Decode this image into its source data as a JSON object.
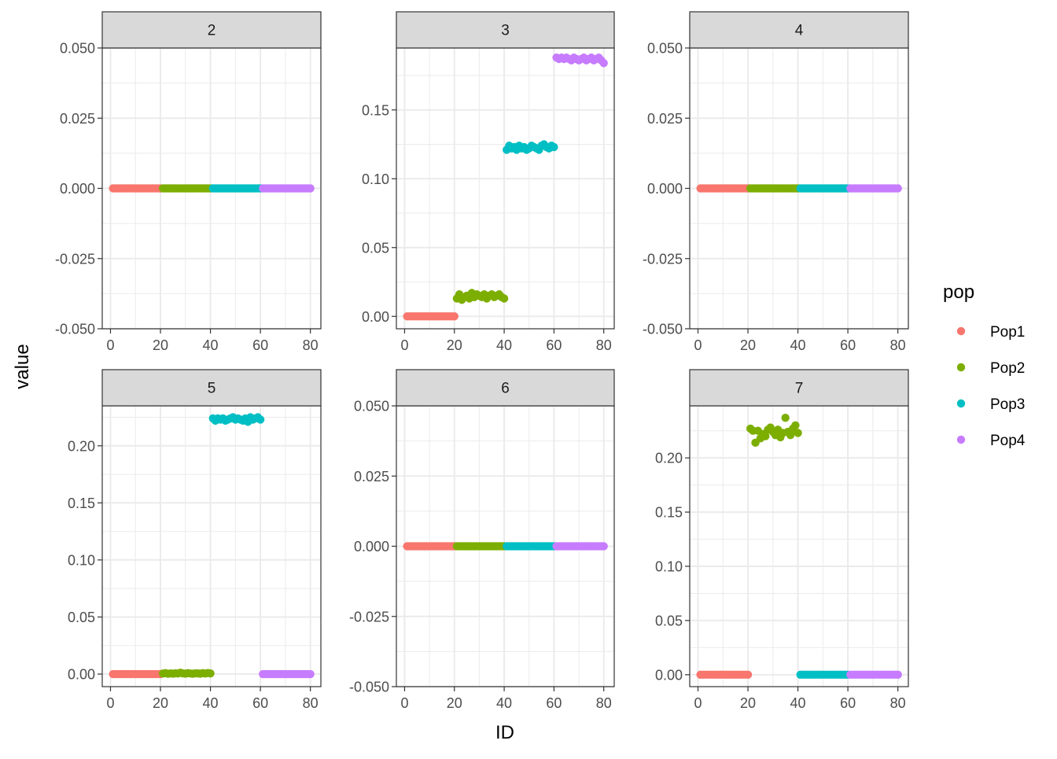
{
  "chart_data": {
    "type": "scatter",
    "title": "",
    "xlabel": "ID",
    "ylabel": "value",
    "legend": {
      "title": "pop",
      "position": "right",
      "entries": [
        {
          "name": "Pop1",
          "color": "#F8766D"
        },
        {
          "name": "Pop2",
          "color": "#7CAE00"
        },
        {
          "name": "Pop3",
          "color": "#00BFC4"
        },
        {
          "name": "Pop4",
          "color": "#C77CFF"
        }
      ]
    },
    "x_range": [
      0,
      80
    ],
    "x_ticks": [
      0,
      20,
      40,
      60,
      80
    ],
    "x_tick_labels": [
      "0",
      "20",
      "40",
      "60",
      "80"
    ],
    "groups": {
      "Pop1": [
        1,
        20
      ],
      "Pop2": [
        21,
        40
      ],
      "Pop3": [
        41,
        60
      ],
      "Pop4": [
        61,
        80
      ]
    },
    "panels": [
      {
        "label": "2",
        "ylim": [
          -0.05,
          0.05
        ],
        "y_ticks": [
          -0.05,
          -0.025,
          0,
          0.025,
          0.05
        ],
        "y_tick_labels": [
          "-0.050",
          "-0.025",
          "0.000",
          "0.025",
          "0.050"
        ],
        "values": [
          0,
          0,
          0,
          0,
          0,
          0,
          0,
          0,
          0,
          0,
          0,
          0,
          0,
          0,
          0,
          0,
          0,
          0,
          0,
          0,
          0,
          0,
          0,
          0,
          0,
          0,
          0,
          0,
          0,
          0,
          0,
          0,
          0,
          0,
          0,
          0,
          0,
          0,
          0,
          0,
          0,
          0,
          0,
          0,
          0,
          0,
          0,
          0,
          0,
          0,
          0,
          0,
          0,
          0,
          0,
          0,
          0,
          0,
          0,
          0,
          0,
          0,
          0,
          0,
          0,
          0,
          0,
          0,
          0,
          0,
          0,
          0,
          0,
          0,
          0,
          0,
          0,
          0,
          0,
          0
        ]
      },
      {
        "label": "3",
        "ylim": [
          -0.009,
          0.195
        ],
        "y_ticks": [
          0,
          0.05,
          0.1,
          0.15
        ],
        "y_tick_labels": [
          "0.00",
          "0.05",
          "0.10",
          "0.15"
        ],
        "values": [
          0,
          0,
          0,
          0,
          0,
          0,
          0,
          0,
          0,
          0,
          0,
          0,
          0,
          0,
          0,
          0,
          0,
          0,
          0,
          0,
          0.013,
          0.016,
          0.012,
          0.014,
          0.015,
          0.013,
          0.017,
          0.014,
          0.016,
          0.015,
          0.014,
          0.016,
          0.013,
          0.015,
          0.016,
          0.014,
          0.015,
          0.016,
          0.014,
          0.013,
          0.121,
          0.124,
          0.122,
          0.123,
          0.121,
          0.124,
          0.122,
          0.123,
          0.121,
          0.122,
          0.124,
          0.123,
          0.122,
          0.121,
          0.124,
          0.125,
          0.123,
          0.122,
          0.124,
          0.123,
          0.188,
          0.187,
          0.188,
          0.187,
          0.188,
          0.187,
          0.186,
          0.188,
          0.187,
          0.186,
          0.187,
          0.188,
          0.186,
          0.187,
          0.188,
          0.186,
          0.187,
          0.188,
          0.186,
          0.184
        ]
      },
      {
        "label": "4",
        "ylim": [
          -0.05,
          0.05
        ],
        "y_ticks": [
          -0.05,
          -0.025,
          0,
          0.025,
          0.05
        ],
        "y_tick_labels": [
          "-0.050",
          "-0.025",
          "0.000",
          "0.025",
          "0.050"
        ],
        "values": [
          0,
          0,
          0,
          0,
          0,
          0,
          0,
          0,
          0,
          0,
          0,
          0,
          0,
          0,
          0,
          0,
          0,
          0,
          0,
          0,
          0,
          0,
          0,
          0,
          0,
          0,
          0,
          0,
          0,
          0,
          0,
          0,
          0,
          0,
          0,
          0,
          0,
          0,
          0,
          0,
          0,
          0,
          0,
          0,
          0,
          0,
          0,
          0,
          0,
          0,
          0,
          0,
          0,
          0,
          0,
          0,
          0,
          0,
          0,
          0,
          0,
          0,
          0,
          0,
          0,
          0,
          0,
          0,
          0,
          0,
          0,
          0,
          0,
          0,
          0,
          0,
          0,
          0,
          0,
          0
        ]
      },
      {
        "label": "5",
        "ylim": [
          -0.011,
          0.235
        ],
        "y_ticks": [
          0,
          0.05,
          0.1,
          0.15,
          0.2
        ],
        "y_tick_labels": [
          "0.00",
          "0.05",
          "0.10",
          "0.15",
          "0.20"
        ],
        "values": [
          0,
          0,
          0,
          0,
          0,
          0,
          0,
          0,
          0,
          0,
          0,
          0,
          0,
          0,
          0,
          0,
          0,
          0,
          0,
          0,
          0.0005,
          0.0008,
          0.0003,
          0.0006,
          0.0004,
          0.0007,
          0.0005,
          0.0012,
          0.0006,
          0.0004,
          0.0008,
          0.0005,
          0.0003,
          0.0007,
          0.0006,
          0.0004,
          0.0008,
          0.0005,
          0.0009,
          0.0006,
          0.224,
          0.222,
          0.224,
          0.223,
          0.224,
          0.222,
          0.223,
          0.224,
          0.225,
          0.223,
          0.224,
          0.223,
          0.222,
          0.224,
          0.221,
          0.225,
          0.223,
          0.224,
          0.225,
          0.223,
          0,
          0,
          0,
          0,
          0,
          0,
          0,
          0,
          0,
          0,
          0,
          0,
          0,
          0,
          0,
          0,
          0,
          0,
          0,
          0
        ]
      },
      {
        "label": "6",
        "ylim": [
          -0.05,
          0.05
        ],
        "y_ticks": [
          -0.05,
          -0.025,
          0,
          0.025,
          0.05
        ],
        "y_tick_labels": [
          "-0.050",
          "-0.025",
          "0.000",
          "0.025",
          "0.050"
        ],
        "values": [
          0,
          0,
          0,
          0,
          0,
          0,
          0,
          0,
          0,
          0,
          0,
          0,
          0,
          0,
          0,
          0,
          0,
          0,
          0,
          0,
          0,
          0,
          0,
          0,
          0,
          0,
          0,
          0,
          0,
          0,
          0,
          0,
          0,
          0,
          0,
          0,
          0,
          0,
          0,
          0,
          0,
          0,
          0,
          0,
          0,
          0,
          0,
          0,
          0,
          0,
          0,
          0,
          0,
          0,
          0,
          0,
          0,
          0,
          0,
          0,
          0,
          0,
          0,
          0,
          0,
          0,
          0,
          0,
          0,
          0,
          0,
          0,
          0,
          0,
          0,
          0,
          0,
          0,
          0,
          0
        ]
      },
      {
        "label": "7",
        "ylim": [
          -0.011,
          0.248
        ],
        "y_ticks": [
          0,
          0.05,
          0.1,
          0.15,
          0.2
        ],
        "y_tick_labels": [
          "0.00",
          "0.05",
          "0.10",
          "0.15",
          "0.20"
        ],
        "values": [
          0,
          0,
          0,
          0,
          0,
          0,
          0,
          0,
          0,
          0,
          0,
          0,
          0,
          0,
          0,
          0,
          0,
          0,
          0,
          0,
          0.227,
          0.225,
          0.214,
          0.225,
          0.218,
          0.222,
          0.22,
          0.226,
          0.228,
          0.224,
          0.221,
          0.226,
          0.219,
          0.223,
          0.237,
          0.224,
          0.221,
          0.227,
          0.23,
          0.223,
          0,
          0,
          0,
          0,
          0,
          0,
          0,
          0,
          0,
          0,
          0,
          0,
          0,
          0,
          0,
          0,
          0,
          0,
          0,
          0,
          0,
          0,
          0,
          0,
          0,
          0,
          0,
          0,
          0,
          0,
          0,
          0,
          0,
          0,
          0,
          0,
          0,
          0,
          0,
          0
        ]
      }
    ]
  }
}
